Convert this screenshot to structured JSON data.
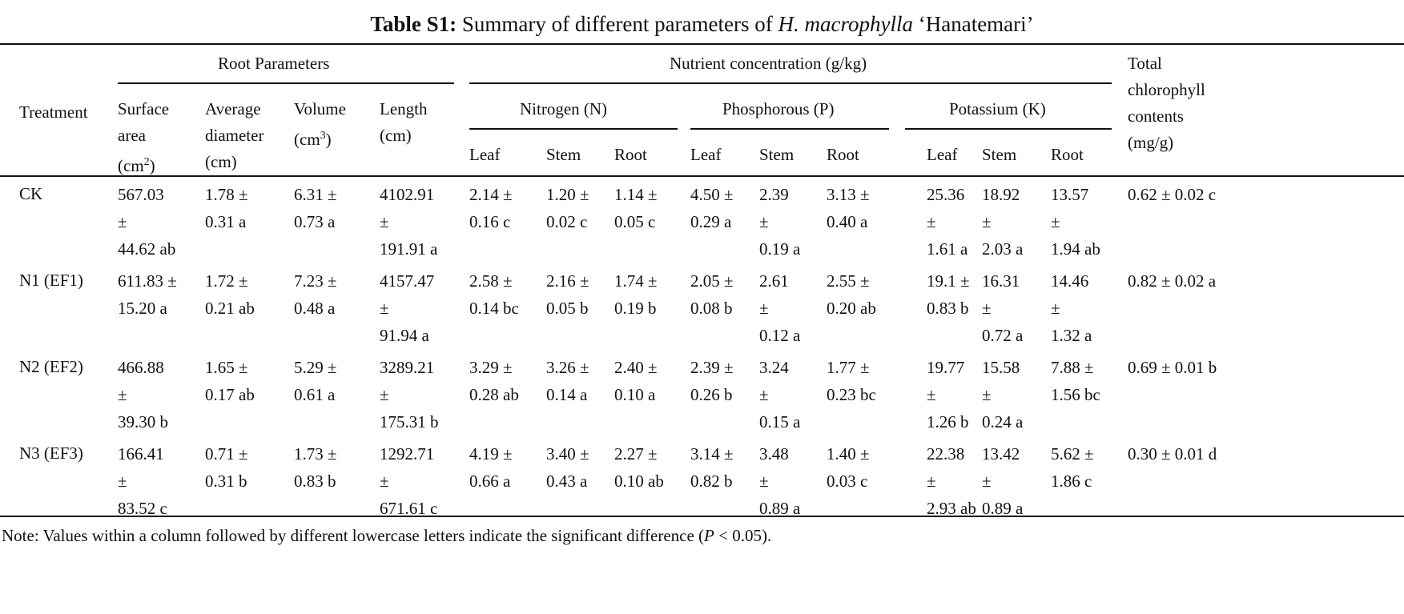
{
  "title": {
    "label": "Table S1:",
    "text_before": "Summary of different parameters of ",
    "species": "H. macrophylla",
    "cultivar": " ‘Hanatemari’"
  },
  "header": {
    "treatment": "Treatment",
    "root_group": "Root Parameters",
    "nutrient_group": "Nutrient concentration (g/kg)",
    "chlorophyll": [
      "Total",
      "chlorophyll",
      "contents",
      "(mg/g)"
    ],
    "root_cols": [
      [
        "Surface",
        "area",
        "(cm",
        "2",
        ")"
      ],
      [
        "Average",
        "diameter",
        "(cm)"
      ],
      [
        "Volume",
        "(cm",
        "3",
        ")"
      ],
      [
        "Length",
        "(cm)"
      ]
    ],
    "nutrients": [
      "Nitrogen (N)",
      "Phosphorous (P)",
      "Potassium (K)"
    ],
    "parts": [
      "Leaf",
      "Stem",
      "Root"
    ]
  },
  "rows": [
    {
      "treatment": "CK",
      "cells": [
        [
          "567.03",
          "±",
          "44.62 ab"
        ],
        [
          "1.78 ±",
          "0.31 a"
        ],
        [
          "6.31 ±",
          "0.73 a"
        ],
        [
          "4102.91",
          "±",
          "191.91 a"
        ],
        [
          "2.14 ±",
          "0.16 c"
        ],
        [
          "1.20 ±",
          "0.02 c"
        ],
        [
          "1.14 ±",
          "0.05 c"
        ],
        [
          "4.50 ±",
          "0.29 a"
        ],
        [
          "2.39",
          "±",
          "0.19 a"
        ],
        [
          "3.13 ±",
          "0.40 a"
        ],
        [
          "25.36",
          "±",
          "1.61 a"
        ],
        [
          "18.92",
          "±",
          "2.03 a"
        ],
        [
          "13.57",
          "±",
          "1.94 ab"
        ],
        [
          "0.62 ± 0.02 c"
        ]
      ]
    },
    {
      "treatment": "N1 (EF1)",
      "cells": [
        [
          "611.83 ±",
          "15.20 a"
        ],
        [
          "1.72 ±",
          "0.21 ab"
        ],
        [
          "7.23 ±",
          "0.48 a"
        ],
        [
          "4157.47",
          "±",
          "91.94 a"
        ],
        [
          "2.58 ±",
          "0.14 bc"
        ],
        [
          "2.16 ±",
          "0.05 b"
        ],
        [
          "1.74 ±",
          "0.19 b"
        ],
        [
          "2.05 ±",
          "0.08 b"
        ],
        [
          "2.61",
          "±",
          "0.12 a"
        ],
        [
          "2.55 ±",
          "0.20 ab"
        ],
        [
          "19.1 ±",
          "0.83 b"
        ],
        [
          "16.31",
          "±",
          "0.72 a"
        ],
        [
          "14.46",
          "±",
          "1.32 a"
        ],
        [
          "0.82 ± 0.02 a"
        ]
      ]
    },
    {
      "treatment": "N2 (EF2)",
      "cells": [
        [
          "466.88",
          "±",
          "39.30 b"
        ],
        [
          "1.65 ±",
          "0.17 ab"
        ],
        [
          "5.29 ±",
          "0.61 a"
        ],
        [
          "3289.21",
          "±",
          "175.31 b"
        ],
        [
          "3.29 ±",
          "0.28 ab"
        ],
        [
          "3.26 ±",
          "0.14 a"
        ],
        [
          "2.40 ±",
          "0.10 a"
        ],
        [
          "2.39 ±",
          "0.26 b"
        ],
        [
          "3.24",
          "±",
          "0.15 a"
        ],
        [
          "1.77 ±",
          "0.23 bc"
        ],
        [
          "19.77",
          "±",
          "1.26 b"
        ],
        [
          "15.58",
          "±",
          "0.24 a"
        ],
        [
          "7.88 ±",
          "1.56 bc"
        ],
        [
          "0.69 ± 0.01 b"
        ]
      ]
    },
    {
      "treatment": "N3 (EF3)",
      "cells": [
        [
          "166.41",
          "±",
          "83.52 c"
        ],
        [
          "0.71 ±",
          "0.31 b"
        ],
        [
          "1.73 ±",
          "0.83 b"
        ],
        [
          "1292.71",
          "±",
          "671.61 c"
        ],
        [
          "4.19 ±",
          "0.66 a"
        ],
        [
          "3.40 ±",
          "0.43 a"
        ],
        [
          "2.27 ±",
          "0.10 ab"
        ],
        [
          "3.14 ±",
          "0.82 b"
        ],
        [
          "3.48",
          "±",
          "0.89 a"
        ],
        [
          "1.40 ±",
          "0.03 c"
        ],
        [
          "22.38",
          "±",
          "2.93 ab"
        ],
        [
          "13.42",
          "±",
          "0.89 a"
        ],
        [
          "5.62 ±",
          "1.86 c"
        ],
        [
          "0.30 ± 0.01 d"
        ]
      ]
    }
  ],
  "note": {
    "before": "Note: Values within a column followed by different lowercase letters indicate the significant difference (",
    "p": "P",
    "after": " < 0.05)."
  }
}
